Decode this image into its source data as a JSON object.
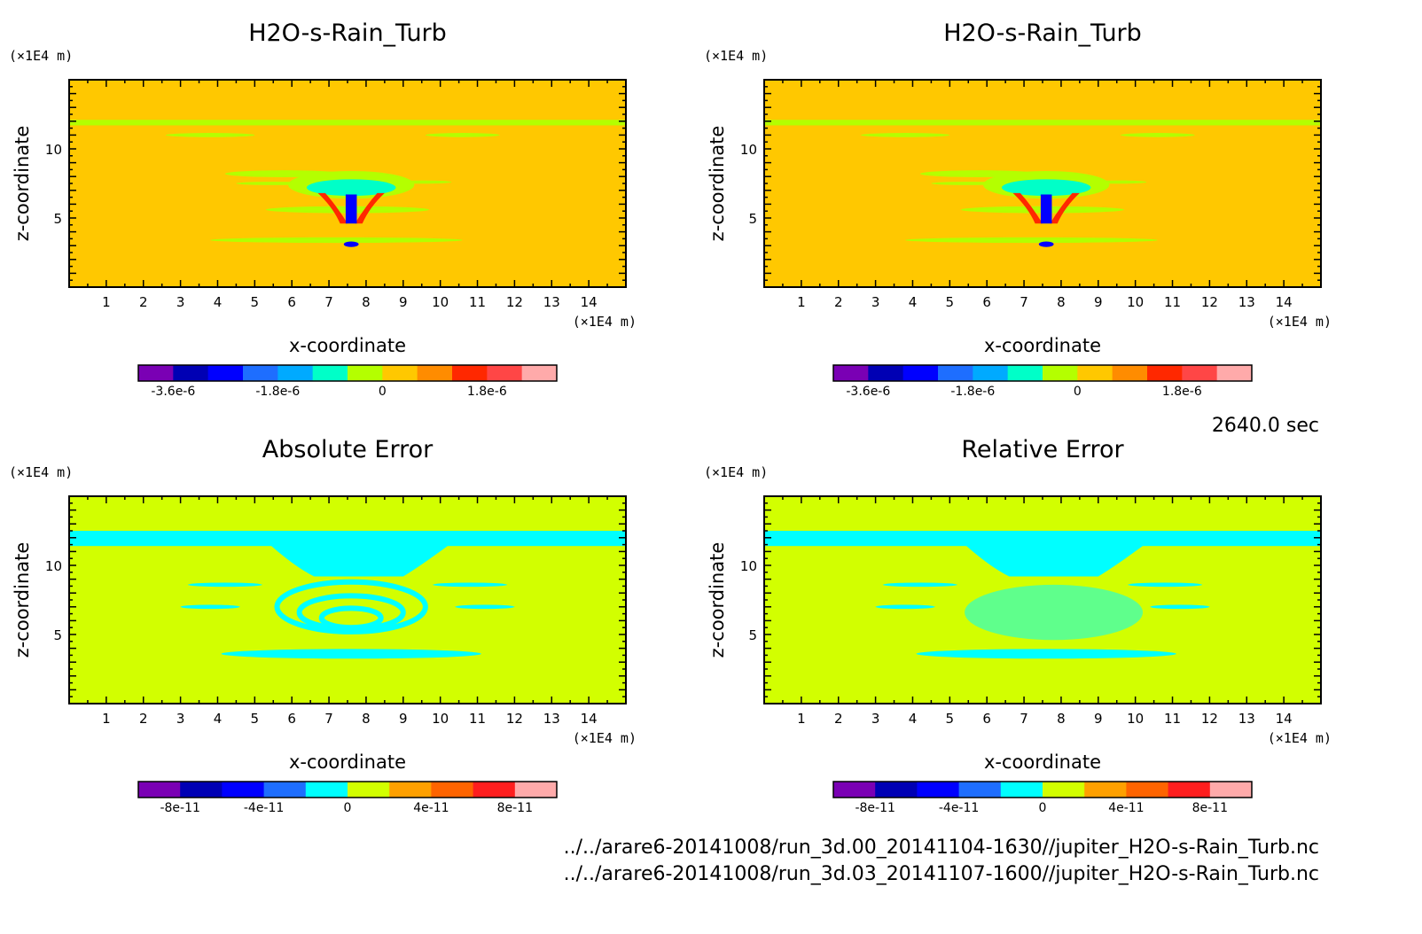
{
  "time_label": "2640.0 sec",
  "files": [
    "../../arare6-20141008/run_3d.00_20141104-1630//jupiter_H2O-s-Rain_Turb.nc",
    "../../arare6-20141008/run_3d.03_20141107-1600//jupiter_H2O-s-Rain_Turb.nc"
  ],
  "colors": {
    "field_bg": "#ffc800",
    "error_bg": "#d2ff00",
    "error_feature": "#00ffff"
  },
  "chart_data": [
    {
      "type": "heatmap",
      "title": "H2O-s-Rain_Turb",
      "xlabel": "x-coordinate",
      "ylabel": "z-coordinate",
      "x_unit": "(×1E4 m)",
      "y_unit": "(×1E4 m)",
      "xlim": [
        0,
        15
      ],
      "ylim": [
        0,
        15
      ],
      "x_ticks": [
        "1",
        "2",
        "3",
        "4",
        "5",
        "6",
        "7",
        "8",
        "9",
        "10",
        "11",
        "12",
        "13",
        "14"
      ],
      "y_ticks": [
        "5",
        "10"
      ],
      "colorbar": {
        "colors": [
          "#7a00b4",
          "#0000b4",
          "#0000ff",
          "#1e6eff",
          "#00aaff",
          "#00ffc8",
          "#b4ff00",
          "#ffc800",
          "#ff8c00",
          "#ff2800",
          "#ff4646",
          "#ffaaaa"
        ],
        "labels": [
          "-3.6e-6",
          "-1.8e-6",
          "0",
          "1.8e-6"
        ]
      }
    },
    {
      "type": "heatmap",
      "title": "H2O-s-Rain_Turb",
      "xlabel": "x-coordinate",
      "ylabel": "z-coordinate",
      "x_unit": "(×1E4 m)",
      "y_unit": "(×1E4 m)",
      "xlim": [
        0,
        15
      ],
      "ylim": [
        0,
        15
      ],
      "x_ticks": [
        "1",
        "2",
        "3",
        "4",
        "5",
        "6",
        "7",
        "8",
        "9",
        "10",
        "11",
        "12",
        "13",
        "14"
      ],
      "y_ticks": [
        "5",
        "10"
      ],
      "colorbar": {
        "colors": [
          "#7a00b4",
          "#0000b4",
          "#0000ff",
          "#1e6eff",
          "#00aaff",
          "#00ffc8",
          "#b4ff00",
          "#ffc800",
          "#ff8c00",
          "#ff2800",
          "#ff4646",
          "#ffaaaa"
        ],
        "labels": [
          "-3.6e-6",
          "-1.8e-6",
          "0",
          "1.8e-6"
        ]
      }
    },
    {
      "type": "heatmap",
      "title": "Absolute Error",
      "xlabel": "x-coordinate",
      "ylabel": "z-coordinate",
      "x_unit": "(×1E4 m)",
      "y_unit": "(×1E4 m)",
      "xlim": [
        0,
        15
      ],
      "ylim": [
        0,
        15
      ],
      "x_ticks": [
        "1",
        "2",
        "3",
        "4",
        "5",
        "6",
        "7",
        "8",
        "9",
        "10",
        "11",
        "12",
        "13",
        "14"
      ],
      "y_ticks": [
        "5",
        "10"
      ],
      "colorbar": {
        "colors": [
          "#7a00b4",
          "#0000b4",
          "#0000ff",
          "#1e6eff",
          "#00ffff",
          "#d2ff00",
          "#ffa000",
          "#ff6400",
          "#ff1e1e",
          "#ffaaaa"
        ],
        "labels": [
          "-8e-11",
          "-4e-11",
          "0",
          "4e-11",
          "8e-11"
        ]
      }
    },
    {
      "type": "heatmap",
      "title": "Relative Error",
      "xlabel": "x-coordinate",
      "ylabel": "z-coordinate",
      "x_unit": "(×1E4 m)",
      "y_unit": "(×1E4 m)",
      "xlim": [
        0,
        15
      ],
      "ylim": [
        0,
        15
      ],
      "x_ticks": [
        "1",
        "2",
        "3",
        "4",
        "5",
        "6",
        "7",
        "8",
        "9",
        "10",
        "11",
        "12",
        "13",
        "14"
      ],
      "y_ticks": [
        "5",
        "10"
      ],
      "colorbar": {
        "colors": [
          "#7a00b4",
          "#0000b4",
          "#0000ff",
          "#1e6eff",
          "#00ffff",
          "#d2ff00",
          "#ffa000",
          "#ff6400",
          "#ff1e1e",
          "#ffaaaa"
        ],
        "labels": [
          "-8e-11",
          "-4e-11",
          "0",
          "4e-11",
          "8e-11"
        ]
      }
    }
  ]
}
